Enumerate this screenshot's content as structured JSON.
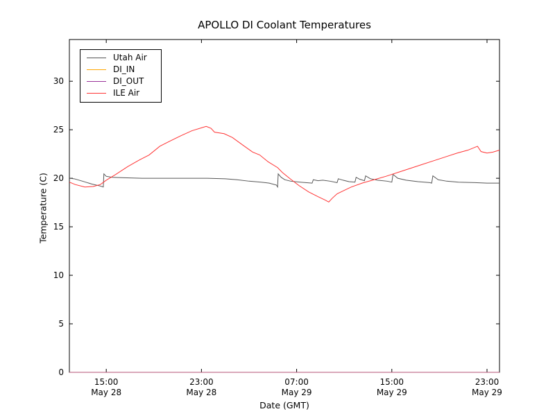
{
  "window": {
    "background": "#ffffff"
  },
  "chart_data": {
    "type": "line",
    "title": "APOLLO DI Coolant Temperatures",
    "xlabel": "Date (GMT)",
    "ylabel": "Temperature (C)",
    "x_unit": "hours since May 28 00:00 GMT",
    "xlim": [
      11.9,
      48.05
    ],
    "ylim": [
      0,
      34.3
    ],
    "grid": false,
    "legend_position": "upper left",
    "frame_color": "#000000",
    "y_ticks": [
      0,
      5,
      10,
      15,
      20,
      25,
      30
    ],
    "x_ticks": [
      {
        "t": 15,
        "time": "15:00",
        "date": "May 28"
      },
      {
        "t": 23,
        "time": "23:00",
        "date": "May 28"
      },
      {
        "t": 31,
        "time": "07:00",
        "date": "May 29"
      },
      {
        "t": 39,
        "time": "15:00",
        "date": "May 29"
      },
      {
        "t": 47,
        "time": "23:00",
        "date": "May 29"
      }
    ],
    "series": [
      {
        "name": "Utah Air",
        "color": "#555555",
        "opacity": 1,
        "points": [
          [
            11.9,
            20.0
          ],
          [
            12.3,
            19.95
          ],
          [
            13.0,
            19.7
          ],
          [
            13.8,
            19.4
          ],
          [
            14.5,
            19.2
          ],
          [
            14.75,
            19.1
          ],
          [
            14.8,
            20.45
          ],
          [
            15.0,
            20.2
          ],
          [
            15.5,
            20.1
          ],
          [
            16.5,
            20.05
          ],
          [
            18,
            20.0
          ],
          [
            20,
            20.0
          ],
          [
            22,
            20.0
          ],
          [
            23.5,
            20.0
          ],
          [
            25,
            19.95
          ],
          [
            26,
            19.85
          ],
          [
            27,
            19.7
          ],
          [
            28,
            19.6
          ],
          [
            28.7,
            19.5
          ],
          [
            29.3,
            19.3
          ],
          [
            29.4,
            19.1
          ],
          [
            29.45,
            20.45
          ],
          [
            29.7,
            20.1
          ],
          [
            30.0,
            19.85
          ],
          [
            30.5,
            19.7
          ],
          [
            31.3,
            19.6
          ],
          [
            32.3,
            19.5
          ],
          [
            32.4,
            19.85
          ],
          [
            32.8,
            19.75
          ],
          [
            33.2,
            19.8
          ],
          [
            33.8,
            19.7
          ],
          [
            34.4,
            19.55
          ],
          [
            34.5,
            19.95
          ],
          [
            34.9,
            19.8
          ],
          [
            35.4,
            19.65
          ],
          [
            35.9,
            19.6
          ],
          [
            36.0,
            20.1
          ],
          [
            36.3,
            19.9
          ],
          [
            36.7,
            19.75
          ],
          [
            36.8,
            20.25
          ],
          [
            37.2,
            19.95
          ],
          [
            37.8,
            19.8
          ],
          [
            38.6,
            19.7
          ],
          [
            39.0,
            19.6
          ],
          [
            39.1,
            20.4
          ],
          [
            39.5,
            20.0
          ],
          [
            40.2,
            19.8
          ],
          [
            41.2,
            19.65
          ],
          [
            42.2,
            19.55
          ],
          [
            42.35,
            19.5
          ],
          [
            42.45,
            20.25
          ],
          [
            42.9,
            19.85
          ],
          [
            43.6,
            19.7
          ],
          [
            44.6,
            19.6
          ],
          [
            46,
            19.55
          ],
          [
            47,
            19.5
          ],
          [
            48.05,
            19.5
          ]
        ]
      },
      {
        "name": "DI_IN",
        "color": "#ffa500",
        "opacity": 1,
        "points": [
          [
            11.9,
            0
          ],
          [
            48.05,
            0
          ]
        ]
      },
      {
        "name": "DI_OUT",
        "color": "#993399",
        "opacity": 0.75,
        "points": [
          [
            11.9,
            0
          ],
          [
            48.05,
            0
          ]
        ]
      },
      {
        "name": "ILE Air",
        "color": "#ff3333",
        "opacity": 1,
        "points": [
          [
            11.9,
            19.6
          ],
          [
            12.4,
            19.35
          ],
          [
            13.2,
            19.1
          ],
          [
            13.9,
            19.15
          ],
          [
            14.5,
            19.35
          ],
          [
            15.0,
            19.8
          ],
          [
            15.8,
            20.4
          ],
          [
            16.8,
            21.2
          ],
          [
            17.8,
            21.9
          ],
          [
            18.6,
            22.4
          ],
          [
            19.5,
            23.3
          ],
          [
            20.3,
            23.8
          ],
          [
            21.3,
            24.4
          ],
          [
            22.2,
            24.9
          ],
          [
            23.0,
            25.2
          ],
          [
            23.4,
            25.35
          ],
          [
            23.8,
            25.15
          ],
          [
            24.1,
            24.75
          ],
          [
            24.9,
            24.6
          ],
          [
            25.6,
            24.2
          ],
          [
            26.5,
            23.4
          ],
          [
            27.3,
            22.7
          ],
          [
            27.9,
            22.4
          ],
          [
            28.6,
            21.7
          ],
          [
            29.4,
            21.1
          ],
          [
            29.8,
            20.6
          ],
          [
            30.5,
            19.9
          ],
          [
            31.2,
            19.25
          ],
          [
            32.0,
            18.6
          ],
          [
            32.8,
            18.1
          ],
          [
            33.4,
            17.75
          ],
          [
            33.7,
            17.55
          ],
          [
            34.0,
            17.95
          ],
          [
            34.4,
            18.4
          ],
          [
            35.0,
            18.75
          ],
          [
            35.6,
            19.1
          ],
          [
            36.5,
            19.5
          ],
          [
            37.5,
            19.85
          ],
          [
            38.5,
            20.2
          ],
          [
            39.5,
            20.6
          ],
          [
            40.5,
            21.0
          ],
          [
            41.5,
            21.4
          ],
          [
            42.5,
            21.8
          ],
          [
            43.5,
            22.2
          ],
          [
            44.5,
            22.6
          ],
          [
            45.4,
            22.9
          ],
          [
            46.2,
            23.3
          ],
          [
            46.5,
            22.75
          ],
          [
            47.0,
            22.6
          ],
          [
            47.5,
            22.7
          ],
          [
            48.05,
            22.9
          ]
        ]
      }
    ]
  }
}
